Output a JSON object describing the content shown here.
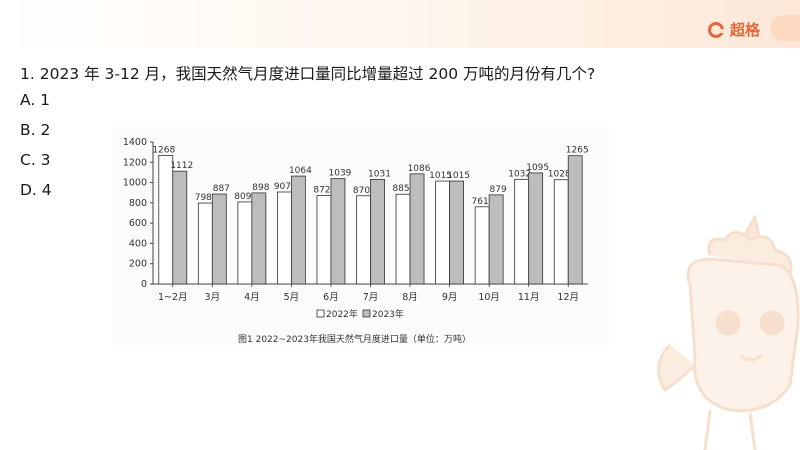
{
  "brand": {
    "name": "超格",
    "logo_icon": "brand-g-logo-icon",
    "color": "#e8663c"
  },
  "question": {
    "text": "1. 2023 年 3-12 月，我国天然气月度进口量同比增量超过 200 万吨的月份有几个?"
  },
  "options": [
    "A. 1",
    "B. 2",
    "C. 3",
    "D. 4"
  ],
  "chart_data": {
    "type": "bar",
    "categories": [
      "1~2月",
      "3月",
      "4月",
      "5月",
      "6月",
      "7月",
      "8月",
      "9月",
      "10月",
      "11月",
      "12月"
    ],
    "series": [
      {
        "name": "2022年",
        "values": [
          1268,
          798,
          809,
          907,
          872,
          870,
          885,
          1015,
          761,
          1032,
          1028
        ],
        "fill": "#ffffff"
      },
      {
        "name": "2023年",
        "values": [
          1112,
          887,
          898,
          1064,
          1039,
          1031,
          1086,
          1015,
          879,
          1095,
          1265
        ],
        "fill": "#bdbdbd"
      }
    ],
    "y_ticks": [
      0,
      200,
      400,
      600,
      800,
      1000,
      1200,
      1400
    ],
    "ylim": [
      0,
      1400
    ],
    "legend_position": "bottom",
    "caption": "图1  2022~2023年我国天然气月度进口量（单位：万吨）"
  }
}
